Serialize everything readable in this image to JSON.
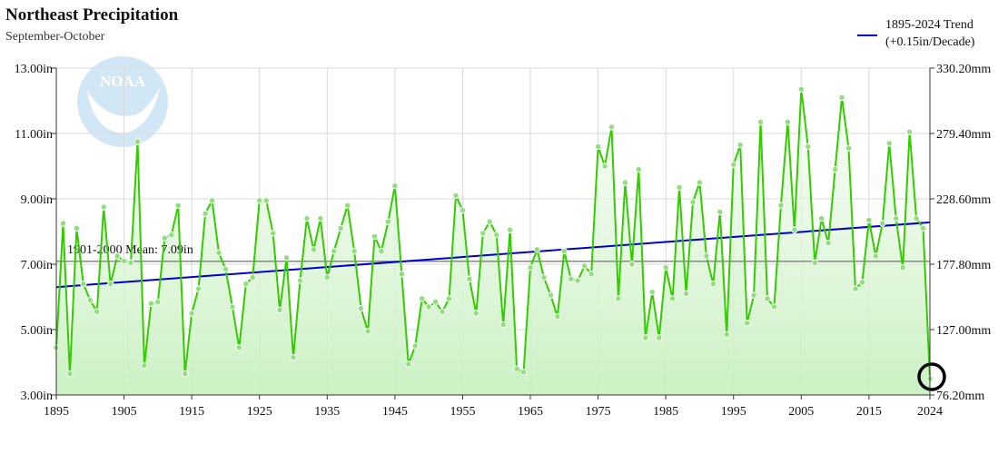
{
  "header": {
    "title": "Northeast Precipitation",
    "subtitle": "September-October"
  },
  "legend": {
    "line1": "1895-2024 Trend",
    "line2": "(+0.15in/Decade)",
    "trend_color": "#0000cc"
  },
  "logo": {
    "text": "NOAA"
  },
  "chart_data": {
    "type": "line",
    "title": "Northeast Precipitation",
    "subtitle": "September-October",
    "x_ticks": [
      "1895",
      "1905",
      "1915",
      "1925",
      "1935",
      "1945",
      "1955",
      "1965",
      "1975",
      "1985",
      "1995",
      "2005",
      "2015",
      "2024"
    ],
    "y_left_ticks": [
      "3.00in",
      "5.00in",
      "7.00in",
      "9.00in",
      "11.00in",
      "13.00in"
    ],
    "y_right_ticks": [
      "76.20mm",
      "127.00mm",
      "177.80mm",
      "228.60mm",
      "279.40mm",
      "330.20mm"
    ],
    "xlim": [
      1895,
      2024
    ],
    "ylim": [
      3,
      13
    ],
    "grid": true,
    "legend_position": "top-right",
    "series": [
      {
        "name": "1895-2024 Trend",
        "color": "#0000cc",
        "x": [
          1895,
          2024
        ],
        "y": [
          6.3,
          8.28
        ]
      }
    ],
    "precip_series": {
      "color": "#33cc00",
      "marker_color": "#8de07a",
      "fill_color": "#c8f0c0",
      "x": [
        1895,
        1896,
        1897,
        1898,
        1899,
        1900,
        1901,
        1902,
        1903,
        1904,
        1905,
        1906,
        1907,
        1908,
        1909,
        1910,
        1911,
        1912,
        1913,
        1914,
        1915,
        1916,
        1917,
        1918,
        1919,
        1920,
        1921,
        1922,
        1923,
        1924,
        1925,
        1926,
        1927,
        1928,
        1929,
        1930,
        1931,
        1932,
        1933,
        1934,
        1935,
        1936,
        1937,
        1938,
        1939,
        1940,
        1941,
        1942,
        1943,
        1944,
        1945,
        1946,
        1947,
        1948,
        1949,
        1950,
        1951,
        1952,
        1953,
        1954,
        1955,
        1956,
        1957,
        1958,
        1959,
        1960,
        1961,
        1962,
        1963,
        1964,
        1965,
        1966,
        1967,
        1968,
        1969,
        1970,
        1971,
        1972,
        1973,
        1974,
        1975,
        1976,
        1977,
        1978,
        1979,
        1980,
        1981,
        1982,
        1983,
        1984,
        1985,
        1986,
        1987,
        1988,
        1989,
        1990,
        1991,
        1992,
        1993,
        1994,
        1995,
        1996,
        1997,
        1998,
        1999,
        2000,
        2001,
        2002,
        2003,
        2004,
        2005,
        2006,
        2007,
        2008,
        2009,
        2010,
        2011,
        2012,
        2013,
        2014,
        2015,
        2016,
        2017,
        2018,
        2019,
        2020,
        2021,
        2022,
        2023,
        2024
      ],
      "y": [
        4.45,
        8.25,
        3.65,
        8.1,
        6.4,
        5.9,
        5.55,
        8.75,
        6.4,
        7.25,
        7.1,
        7.05,
        10.75,
        3.9,
        5.8,
        5.85,
        7.8,
        7.9,
        8.8,
        3.65,
        5.5,
        6.25,
        8.55,
        8.95,
        7.35,
        6.85,
        5.7,
        4.45,
        6.4,
        6.6,
        8.95,
        8.95,
        7.95,
        5.6,
        7.2,
        4.15,
        6.5,
        8.4,
        7.45,
        8.4,
        6.6,
        7.4,
        8.1,
        8.8,
        7.4,
        5.65,
        4.95,
        7.85,
        7.4,
        8.3,
        9.4,
        6.7,
        3.95,
        4.5,
        5.95,
        5.7,
        5.85,
        5.55,
        5.95,
        9.1,
        8.65,
        6.55,
        5.5,
        7.95,
        8.3,
        7.9,
        5.15,
        8.05,
        3.8,
        3.7,
        6.9,
        7.45,
        6.6,
        6.05,
        5.4,
        7.4,
        6.55,
        6.5,
        6.95,
        6.7,
        10.6,
        10,
        11.2,
        5.95,
        9.5,
        7,
        9.9,
        4.75,
        6.15,
        4.75,
        6.9,
        5.95,
        9.35,
        6.1,
        8.9,
        9.5,
        7.25,
        6.4,
        8.6,
        4.85,
        10.05,
        10.65,
        5.2,
        6.05,
        11.35,
        5.95,
        5.7,
        8.8,
        11.35,
        8.05,
        12.35,
        10.6,
        7.05,
        8.4,
        7.65,
        9.9,
        12.1,
        10.55,
        6.25,
        6.45,
        8.35,
        7.25,
        8.25,
        10.7,
        8.4,
        6.9,
        11.05,
        8.4,
        8.1,
        3.5
      ]
    },
    "mean": {
      "label": "1901-2000 Mean: 7.09in",
      "value": 7.09,
      "color": "#888888"
    },
    "highlight": {
      "x": 2024,
      "y": 3.5
    }
  }
}
